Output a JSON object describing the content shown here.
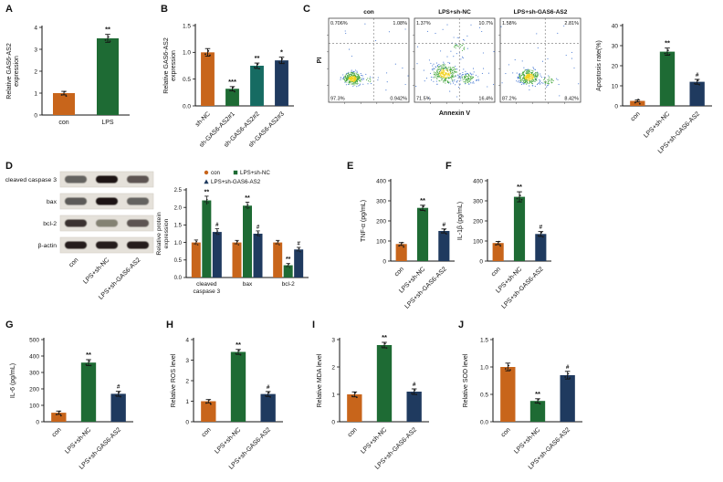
{
  "panel_labels": [
    "A",
    "B",
    "C",
    "D",
    "E",
    "F",
    "G",
    "H",
    "I",
    "J"
  ],
  "colors": {
    "orange": "#C8651B",
    "green": "#1E6B34",
    "teal": "#166B62",
    "navy": "#1F3A5F"
  },
  "chart_data": [
    {
      "id": "A",
      "panel": "A",
      "type": "bar",
      "ylabel": [
        "Relative GAS6-AS2",
        "expression"
      ],
      "categories": [
        "con",
        "LPS"
      ],
      "values": [
        1.0,
        3.5
      ],
      "errors": [
        0.08,
        0.18
      ],
      "sig": [
        "",
        "**"
      ],
      "colors": [
        "#C8651B",
        "#1E6B34"
      ],
      "ylim": [
        0,
        4
      ],
      "yticks": [
        "0",
        "1",
        "2",
        "3",
        "4"
      ]
    },
    {
      "id": "B",
      "panel": "B",
      "type": "bar",
      "ylabel": [
        "Relative GAS6-AS2",
        "expression"
      ],
      "categories": [
        "sh-NC",
        "sh-GAS6-AS2#1",
        "sh-GAS6-AS2#2",
        "sh-GAS6-AS2#3"
      ],
      "values": [
        1.0,
        0.32,
        0.75,
        0.85
      ],
      "errors": [
        0.07,
        0.04,
        0.05,
        0.06
      ],
      "sig": [
        "",
        "***",
        "**",
        "*"
      ],
      "colors": [
        "#C8651B",
        "#1E6B34",
        "#166B62",
        "#1F3A5F"
      ],
      "ylim": [
        0,
        1.5
      ],
      "yticks": [
        "0.0",
        "0.5",
        "1.0",
        "1.5"
      ]
    },
    {
      "id": "Cbar",
      "panel": "C",
      "type": "bar",
      "ylabel": [
        "Apoptosis rate(%)"
      ],
      "categories": [
        "con",
        "LPS+sh-NC",
        "LPS+sh-GAS6-AS2"
      ],
      "values": [
        2.5,
        27,
        12
      ],
      "errors": [
        0.5,
        1.8,
        1.2
      ],
      "sig": [
        "",
        "**",
        "#"
      ],
      "colors": [
        "#C8651B",
        "#1E6B34",
        "#1F3A5F"
      ],
      "ylim": [
        0,
        40
      ],
      "yticks": [
        "0",
        "10",
        "20",
        "30",
        "40"
      ]
    },
    {
      "id": "flow",
      "panel": "C",
      "type": "scatter",
      "xlabel": "Annexin V",
      "ylabel": "PI",
      "plots": [
        {
          "title": "con",
          "quadrants": {
            "top_left": "0.706%",
            "top_right": "1.08%",
            "bottom_left": "97.3%",
            "bottom_right": "0.942%"
          }
        },
        {
          "title": "LPS+sh-NC",
          "quadrants": {
            "top_left": "1.37%",
            "top_right": "10.7%",
            "bottom_left": "71.5%",
            "bottom_right": "16.4%"
          }
        },
        {
          "title": "LPS+sh-GAS6-AS2",
          "quadrants": {
            "top_left": "1.58%",
            "top_right": "2.81%",
            "bottom_left": "87.2%",
            "bottom_right": "8.42%"
          }
        }
      ]
    },
    {
      "id": "D",
      "panel": "D",
      "type": "grouped_bar",
      "ylabel": [
        "Relative protein",
        "expression"
      ],
      "categories": [
        [
          "cleaved",
          "caspase 3"
        ],
        [
          "bax"
        ],
        [
          "bcl-2"
        ]
      ],
      "series": [
        {
          "name": "con",
          "marker": "circle",
          "color": "#C8651B",
          "values": [
            1.0,
            1.0,
            1.0
          ],
          "errors": [
            0.07,
            0.06,
            0.06
          ],
          "sig": [
            "",
            "",
            ""
          ]
        },
        {
          "name": "LPS+sh-NC",
          "marker": "square",
          "color": "#1E6B34",
          "values": [
            2.2,
            2.05,
            0.35
          ],
          "errors": [
            0.12,
            0.1,
            0.05
          ],
          "sig": [
            "**",
            "**",
            "**"
          ]
        },
        {
          "name": "LPS+sh-GAS6-AS2",
          "marker": "triangle",
          "color": "#1F3A5F",
          "values": [
            1.3,
            1.25,
            0.8
          ],
          "errors": [
            0.09,
            0.08,
            0.06
          ],
          "sig": [
            "#",
            "#",
            "#"
          ]
        }
      ],
      "ylim": [
        0,
        2.5
      ],
      "yticks": [
        "0.0",
        "0.5",
        "1.0",
        "1.5",
        "2.0",
        "2.5"
      ]
    },
    {
      "id": "E",
      "panel": "E",
      "type": "bar",
      "ylabel": [
        "TNF-α (pg/mL)"
      ],
      "categories": [
        "con",
        "LPS+sh-NC",
        "LPS+sh-GAS6-AS2"
      ],
      "values": [
        85,
        265,
        150
      ],
      "errors": [
        7,
        13,
        10
      ],
      "sig": [
        "",
        "**",
        "#"
      ],
      "colors": [
        "#C8651B",
        "#1E6B34",
        "#1F3A5F"
      ],
      "ylim": [
        0,
        400
      ],
      "yticks": [
        "0",
        "100",
        "200",
        "300",
        "400"
      ]
    },
    {
      "id": "F",
      "panel": "F",
      "type": "bar",
      "ylabel": [
        "IL-1β (pg/mL)"
      ],
      "categories": [
        "con",
        "LPS+sh-NC",
        "LPS+sh-GAS6-AS2"
      ],
      "values": [
        90,
        320,
        135
      ],
      "errors": [
        8,
        25,
        12
      ],
      "sig": [
        "",
        "**",
        "#"
      ],
      "colors": [
        "#C8651B",
        "#1E6B34",
        "#1F3A5F"
      ],
      "ylim": [
        0,
        400
      ],
      "yticks": [
        "0",
        "100",
        "200",
        "300",
        "400"
      ]
    },
    {
      "id": "G",
      "panel": "G",
      "type": "bar",
      "ylabel": [
        "IL-6 (pg/mL)"
      ],
      "categories": [
        "con",
        "LPS+sh-NC",
        "LPS+sh-GAS6-AS2"
      ],
      "values": [
        55,
        360,
        170
      ],
      "errors": [
        10,
        18,
        15
      ],
      "sig": [
        "",
        "**",
        "#"
      ],
      "colors": [
        "#C8651B",
        "#1E6B34",
        "#1F3A5F"
      ],
      "ylim": [
        0,
        500
      ],
      "yticks": [
        "0",
        "100",
        "200",
        "300",
        "400",
        "500"
      ]
    },
    {
      "id": "H",
      "panel": "H",
      "type": "bar",
      "ylabel": [
        "Relative ROS level"
      ],
      "categories": [
        "con",
        "LPS+sh-NC",
        "LPS+sh-GAS6-AS2"
      ],
      "values": [
        1.0,
        3.4,
        1.35
      ],
      "errors": [
        0.08,
        0.12,
        0.12
      ],
      "sig": [
        "",
        "**",
        "#"
      ],
      "colors": [
        "#C8651B",
        "#1E6B34",
        "#1F3A5F"
      ],
      "ylim": [
        0,
        4
      ],
      "yticks": [
        "0",
        "1",
        "2",
        "3",
        "4"
      ]
    },
    {
      "id": "I",
      "panel": "I",
      "type": "bar",
      "ylabel": [
        "Relative MDA level"
      ],
      "categories": [
        "con",
        "LPS+sh-NC",
        "LPS+sh-GAS6-AS2"
      ],
      "values": [
        1.0,
        2.8,
        1.1
      ],
      "errors": [
        0.09,
        0.1,
        0.1
      ],
      "sig": [
        "",
        "**",
        "#"
      ],
      "colors": [
        "#C8651B",
        "#1E6B34",
        "#1F3A5F"
      ],
      "ylim": [
        0,
        3
      ],
      "yticks": [
        "0",
        "1",
        "2",
        "3"
      ]
    },
    {
      "id": "J",
      "panel": "J",
      "type": "bar",
      "ylabel": [
        "Relative SOD level"
      ],
      "categories": [
        "con",
        "LPS+sh-NC",
        "LPS+sh-GAS6-AS2"
      ],
      "values": [
        1.0,
        0.38,
        0.85
      ],
      "errors": [
        0.07,
        0.04,
        0.07
      ],
      "sig": [
        "",
        "**",
        "#"
      ],
      "colors": [
        "#C8651B",
        "#1E6B34",
        "#1F3A5F"
      ],
      "ylim": [
        0,
        1.5
      ],
      "yticks": [
        "0.0",
        "0.5",
        "1.0",
        "1.5"
      ]
    }
  ],
  "western_blot": {
    "rows": [
      {
        "label": "cleaved caspase 3",
        "band_intensity": [
          0.5,
          1.0,
          0.6
        ]
      },
      {
        "label": "bax",
        "band_intensity": [
          0.55,
          1.0,
          0.5
        ]
      },
      {
        "label": "bcl-2",
        "band_intensity": [
          0.8,
          0.3,
          0.6
        ]
      },
      {
        "label": "β-actin",
        "band_intensity": [
          0.95,
          0.95,
          0.95
        ]
      }
    ],
    "columns": [
      "con",
      "LPS+sh-NC",
      "LPS+sh-GAS6-AS2"
    ]
  }
}
